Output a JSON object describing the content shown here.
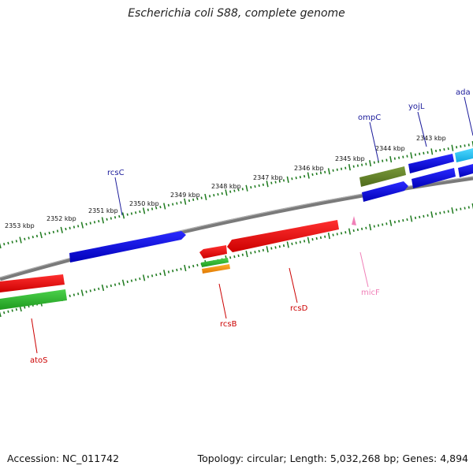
{
  "title": "Escherichia coli S88, complete genome",
  "footer": {
    "accession": "Accession: NC_011742",
    "summary": "Topology: circular; Length: 5,032,268 bp; Genes: 4,894"
  },
  "ruler_labels": [
    "2353 kbp",
    "2352 kbp",
    "2351 kbp",
    "2350 kbp",
    "2349 kbp",
    "2348 kbp",
    "2347 kbp",
    "2346 kbp",
    "2345 kbp",
    "2344 kbp",
    "2343 kbp"
  ],
  "gene_labels": {
    "rcsC": "rcsC",
    "ompC": "ompC",
    "yojL": "yojL",
    "ada": "ada",
    "atoS": "atoS",
    "rcsB": "rcsB",
    "rcsD": "rcsD",
    "micF": "micF"
  },
  "colors": {
    "forward_label": "#1a1a9a",
    "reverse_label": "#cc0000",
    "ncrna": "#f080b8",
    "backbone": "#808080",
    "ruler": "#1e7a1e"
  }
}
